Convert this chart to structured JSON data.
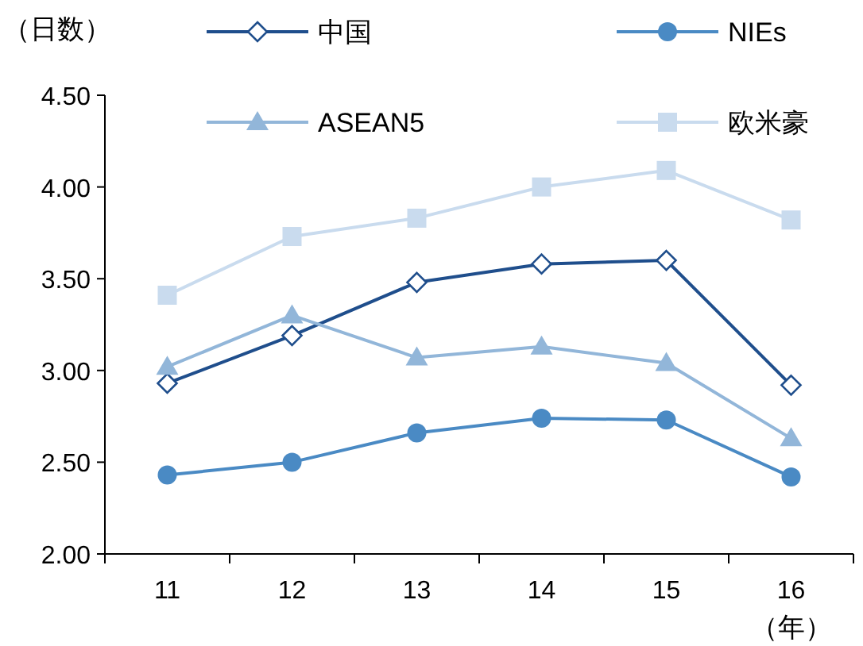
{
  "chart_data": {
    "type": "line",
    "ylabel": "（日数）",
    "xlabel": "（年）",
    "categories": [
      "11",
      "12",
      "13",
      "14",
      "15",
      "16"
    ],
    "series": [
      {
        "name": "中国",
        "color": "#1f4e8c",
        "marker": "diamond",
        "values": [
          2.93,
          3.19,
          3.48,
          3.58,
          3.6,
          2.92
        ]
      },
      {
        "name": "NIEs",
        "color": "#4a8ac4",
        "marker": "circle",
        "values": [
          2.43,
          2.5,
          2.66,
          2.74,
          2.73,
          2.42
        ]
      },
      {
        "name": "ASEAN5",
        "color": "#92b6d9",
        "marker": "triangle",
        "values": [
          3.02,
          3.3,
          3.07,
          3.13,
          3.04,
          2.63
        ]
      },
      {
        "name": "欧米豪",
        "color": "#c9dbee",
        "marker": "square",
        "values": [
          3.41,
          3.73,
          3.83,
          4.0,
          4.09,
          3.82
        ]
      }
    ],
    "ylim": [
      2.0,
      4.5
    ],
    "yticks": [
      {
        "value": 2.0,
        "label": "2.00"
      },
      {
        "value": 2.5,
        "label": "2.50"
      },
      {
        "value": 3.0,
        "label": "3.00"
      },
      {
        "value": 3.5,
        "label": "3.50"
      },
      {
        "value": 4.0,
        "label": "4.00"
      },
      {
        "value": 4.5,
        "label": "4.50"
      }
    ],
    "legend": "top",
    "grid": false
  }
}
